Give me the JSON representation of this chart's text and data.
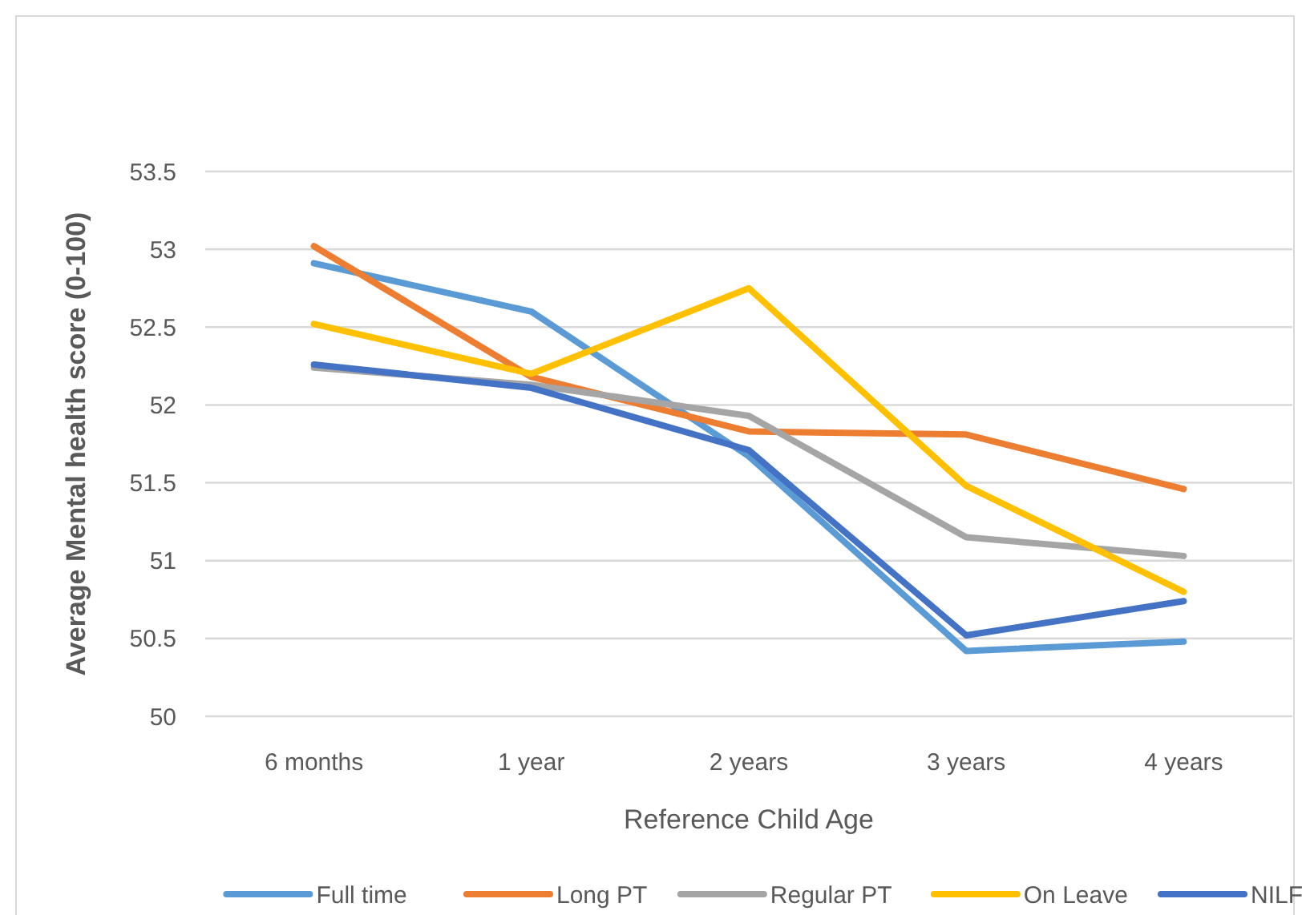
{
  "chart_data": {
    "type": "line",
    "xlabel": "Reference Child Age",
    "ylabel": "Average Mental health score (0-100)",
    "categories": [
      "6 months",
      "1 year",
      "2 years",
      "3 years",
      "4 years"
    ],
    "series": [
      {
        "name": "Full time",
        "color": "#5b9bd5",
        "values": [
          52.91,
          52.6,
          51.67,
          50.42,
          50.48
        ]
      },
      {
        "name": "Long PT",
        "color": "#ed7d31",
        "values": [
          53.02,
          52.18,
          51.83,
          51.81,
          51.46
        ]
      },
      {
        "name": "Regular PT",
        "color": "#a5a5a5",
        "values": [
          52.24,
          52.13,
          51.93,
          51.15,
          51.03
        ]
      },
      {
        "name": "On Leave",
        "color": "#ffc000",
        "values": [
          52.52,
          52.2,
          52.75,
          51.48,
          50.8
        ]
      },
      {
        "name": "NILF",
        "color": "#4472c4",
        "values": [
          52.26,
          52.11,
          51.71,
          50.52,
          50.74
        ]
      }
    ],
    "ylim": [
      50,
      53.5
    ],
    "yticks": [
      50,
      50.5,
      51,
      51.5,
      52,
      52.5,
      53,
      53.5
    ],
    "grid": "y",
    "legend": "bottom",
    "marker": "none",
    "line_style": "solid"
  }
}
